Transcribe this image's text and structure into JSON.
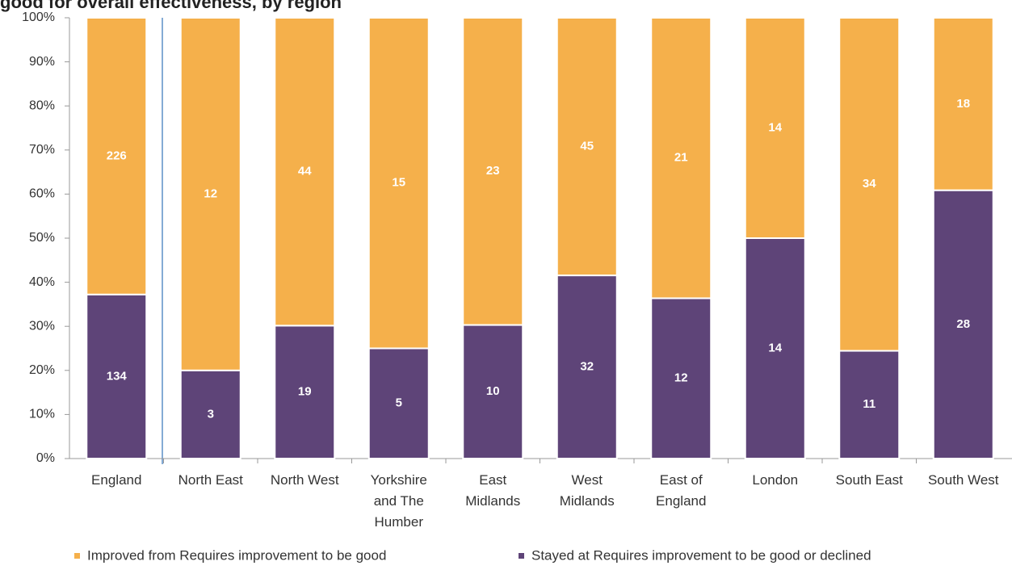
{
  "chart_data": {
    "type": "bar",
    "stacking": "percent",
    "title": "good for overall effectiveness, by region",
    "categories": [
      "England",
      "North East",
      "North West",
      "Yorkshire and The Humber",
      "East Midlands",
      "West Midlands",
      "East of England",
      "London",
      "South East",
      "South West"
    ],
    "series": [
      {
        "name": "Improved from Requires improvement to be good",
        "color": "#f5b04b",
        "values": [
          226,
          12,
          44,
          15,
          23,
          45,
          21,
          14,
          34,
          18
        ]
      },
      {
        "name": "Stayed at Requires improvement to be good or declined",
        "color": "#5e4478",
        "values": [
          134,
          3,
          19,
          5,
          10,
          32,
          12,
          14,
          11,
          28
        ]
      }
    ],
    "ylim": [
      0,
      100
    ],
    "yticks": [
      {
        "value": 0,
        "label": "0%"
      },
      {
        "value": 10,
        "label": "10%"
      },
      {
        "value": 20,
        "label": "20%"
      },
      {
        "value": 30,
        "label": "30%"
      },
      {
        "value": 40,
        "label": "40%"
      },
      {
        "value": 50,
        "label": "50%"
      },
      {
        "value": 60,
        "label": "60%"
      },
      {
        "value": 70,
        "label": "70%"
      },
      {
        "value": 80,
        "label": "80%"
      },
      {
        "value": 90,
        "label": "90%"
      },
      {
        "value": 100,
        "label": "100%"
      }
    ],
    "grid": false,
    "legend": "bottom"
  }
}
